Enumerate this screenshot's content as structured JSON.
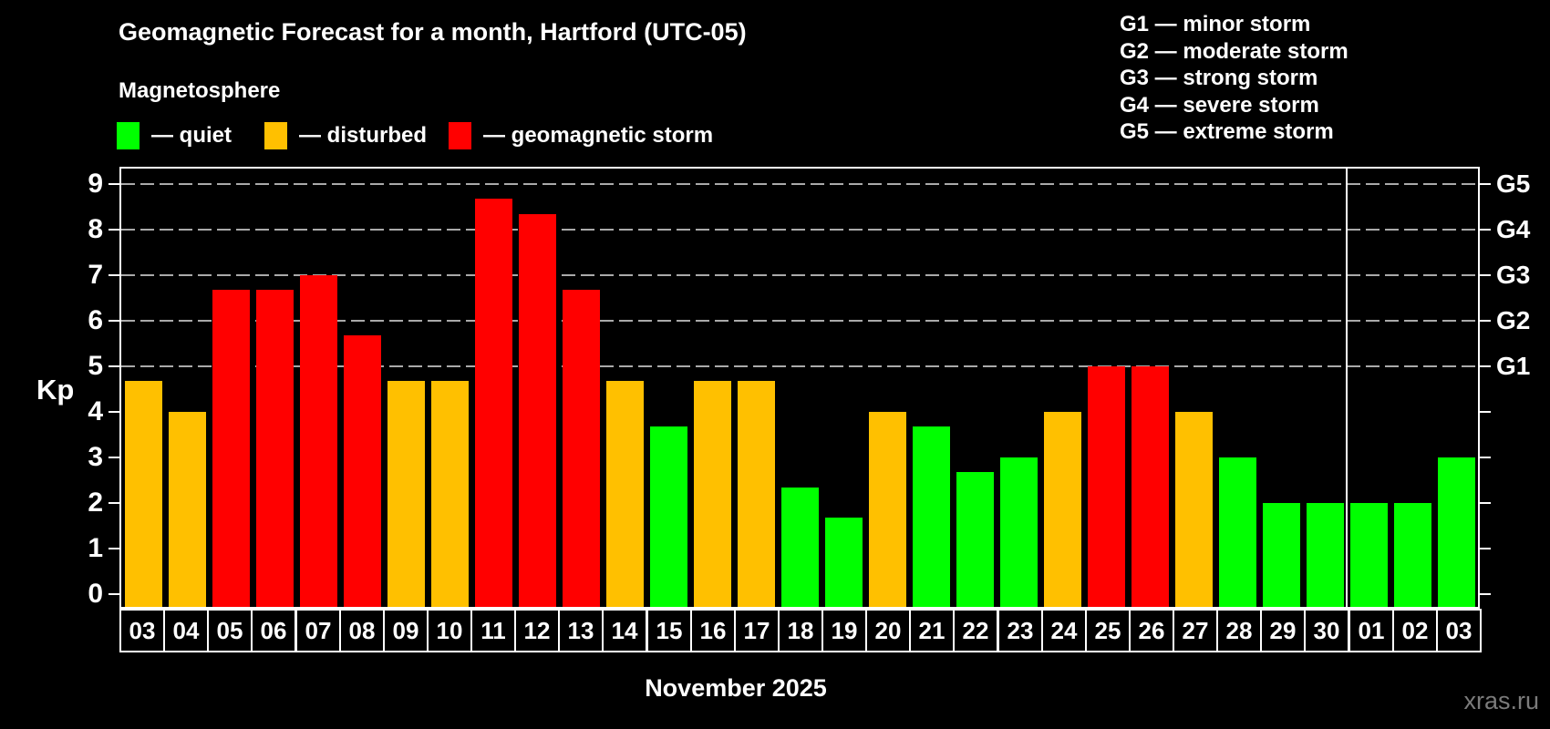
{
  "header": {
    "title": "Geomagnetic Forecast for a month, Hartford (UTC-05)",
    "subtitle": "Magnetosphere"
  },
  "legend": {
    "items": [
      {
        "key": "quiet",
        "label": "— quiet",
        "color": "#00ff00"
      },
      {
        "key": "disturbed",
        "label": "— disturbed",
        "color": "#ffc000"
      },
      {
        "key": "storm",
        "label": "— geomagnetic storm",
        "color": "#ff0000"
      }
    ]
  },
  "g_scale_legend": {
    "lines": [
      "G1 — minor storm",
      "G2 — moderate storm",
      "G3 — strong storm",
      "G4 — severe storm",
      "G5 — extreme storm"
    ]
  },
  "axes": {
    "y_label": "Kp",
    "y_ticks": [
      0,
      1,
      2,
      3,
      4,
      5,
      6,
      7,
      8,
      9
    ],
    "gridline_levels": [
      5,
      6,
      7,
      8,
      9
    ],
    "right_labels": [
      {
        "label": "G1",
        "kp": 5
      },
      {
        "label": "G2",
        "kp": 6
      },
      {
        "label": "G3",
        "kp": 7
      },
      {
        "label": "G4",
        "kp": 8
      },
      {
        "label": "G5",
        "kp": 9
      }
    ],
    "x_title": "November 2025"
  },
  "chart_data": {
    "type": "bar",
    "title": "Geomagnetic Forecast for a month, Hartford (UTC-05)",
    "xlabel": "November 2025",
    "ylabel": "Kp",
    "ylim": [
      0,
      9
    ],
    "grid": "dashed horizontal at Kp 5-9 (G1-G5 storm levels)",
    "categories": [
      "03",
      "04",
      "05",
      "06",
      "07",
      "08",
      "09",
      "10",
      "11",
      "12",
      "13",
      "14",
      "15",
      "16",
      "17",
      "18",
      "19",
      "20",
      "21",
      "22",
      "23",
      "24",
      "25",
      "26",
      "27",
      "28",
      "29",
      "30",
      "01",
      "02",
      "03"
    ],
    "values": [
      4.67,
      4,
      6.67,
      6.67,
      7,
      5.67,
      4.67,
      4.67,
      8.67,
      8.33,
      6.67,
      4.67,
      3.67,
      4.67,
      4.67,
      2.33,
      1.67,
      4,
      3.67,
      2.67,
      3,
      4,
      5,
      5,
      4,
      3,
      2,
      2,
      2,
      2,
      3
    ],
    "states": [
      "disturbed",
      "disturbed",
      "storm",
      "storm",
      "storm",
      "storm",
      "disturbed",
      "disturbed",
      "storm",
      "storm",
      "storm",
      "disturbed",
      "quiet",
      "disturbed",
      "disturbed",
      "quiet",
      "quiet",
      "disturbed",
      "quiet",
      "quiet",
      "quiet",
      "disturbed",
      "storm",
      "storm",
      "disturbed",
      "quiet",
      "quiet",
      "quiet",
      "quiet",
      "quiet",
      "quiet"
    ],
    "state_colors": {
      "quiet": "#00ff00",
      "disturbed": "#ffc000",
      "storm": "#ff0000"
    },
    "month_separator_after_index": 27,
    "legend_position": "top"
  },
  "watermark": "xras.ru"
}
